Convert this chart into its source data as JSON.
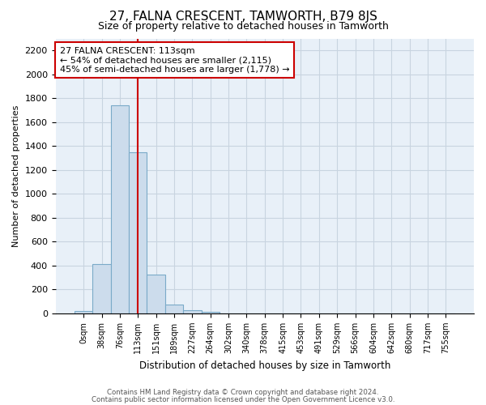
{
  "title": "27, FALNA CRESCENT, TAMWORTH, B79 8JS",
  "subtitle": "Size of property relative to detached houses in Tamworth",
  "xlabel": "Distribution of detached houses by size in Tamworth",
  "ylabel": "Number of detached properties",
  "bar_color": "#ccdcec",
  "bar_edge_color": "#7aaac8",
  "vline_color": "#cc0000",
  "vline_x": 3,
  "annotation_text": "27 FALNA CRESCENT: 113sqm\n← 54% of detached houses are smaller (2,115)\n45% of semi-detached houses are larger (1,778) →",
  "annotation_box_color": "#cc0000",
  "footer_line1": "Contains HM Land Registry data © Crown copyright and database right 2024.",
  "footer_line2": "Contains public sector information licensed under the Open Government Licence v3.0.",
  "categories": [
    "0sqm",
    "38sqm",
    "76sqm",
    "113sqm",
    "151sqm",
    "189sqm",
    "227sqm",
    "264sqm",
    "302sqm",
    "340sqm",
    "378sqm",
    "415sqm",
    "453sqm",
    "491sqm",
    "529sqm",
    "566sqm",
    "604sqm",
    "642sqm",
    "680sqm",
    "717sqm",
    "755sqm"
  ],
  "values": [
    20,
    410,
    1740,
    1350,
    325,
    75,
    25,
    10,
    0,
    0,
    0,
    0,
    0,
    0,
    0,
    0,
    0,
    0,
    0,
    0,
    0
  ],
  "ylim": [
    0,
    2300
  ],
  "yticks": [
    0,
    200,
    400,
    600,
    800,
    1000,
    1200,
    1400,
    1600,
    1800,
    2000,
    2200
  ],
  "grid_color": "#c8d4e0",
  "bg_color": "#ffffff",
  "plot_bg_color": "#e8f0f8"
}
